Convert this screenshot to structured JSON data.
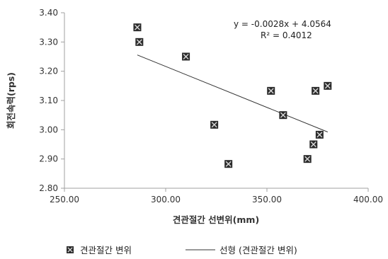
{
  "chart_data": {
    "type": "scatter",
    "xlabel": "견관절간 선변위(mm)",
    "ylabel": "회전속력(rps)",
    "xlim": [
      250,
      400
    ],
    "ylim": [
      2.8,
      3.4
    ],
    "x_ticks": [
      "250.00",
      "300.00",
      "350.00",
      "400.00"
    ],
    "y_ticks": [
      "2.80",
      "2.90",
      "3.00",
      "3.10",
      "3.20",
      "3.30",
      "3.40"
    ],
    "grid": false,
    "series": [
      {
        "name": "견관절간 변위",
        "points": [
          {
            "x": 286,
            "y": 3.35
          },
          {
            "x": 287,
            "y": 3.3
          },
          {
            "x": 310,
            "y": 3.25
          },
          {
            "x": 324,
            "y": 3.017
          },
          {
            "x": 331,
            "y": 2.883
          },
          {
            "x": 352,
            "y": 3.133
          },
          {
            "x": 358,
            "y": 3.05
          },
          {
            "x": 370,
            "y": 2.9
          },
          {
            "x": 373,
            "y": 2.95
          },
          {
            "x": 374,
            "y": 3.133
          },
          {
            "x": 376,
            "y": 2.983
          },
          {
            "x": 380,
            "y": 3.15
          }
        ]
      }
    ],
    "trendline": {
      "name": "선형 (견관절간 변위)",
      "slope": -0.0028,
      "intercept": 4.0564,
      "x_range": [
        286,
        380
      ],
      "equation": "y = -0.0028x + 4.0564",
      "r2": "R² = 0.4012"
    },
    "legend_position": "bottom"
  }
}
